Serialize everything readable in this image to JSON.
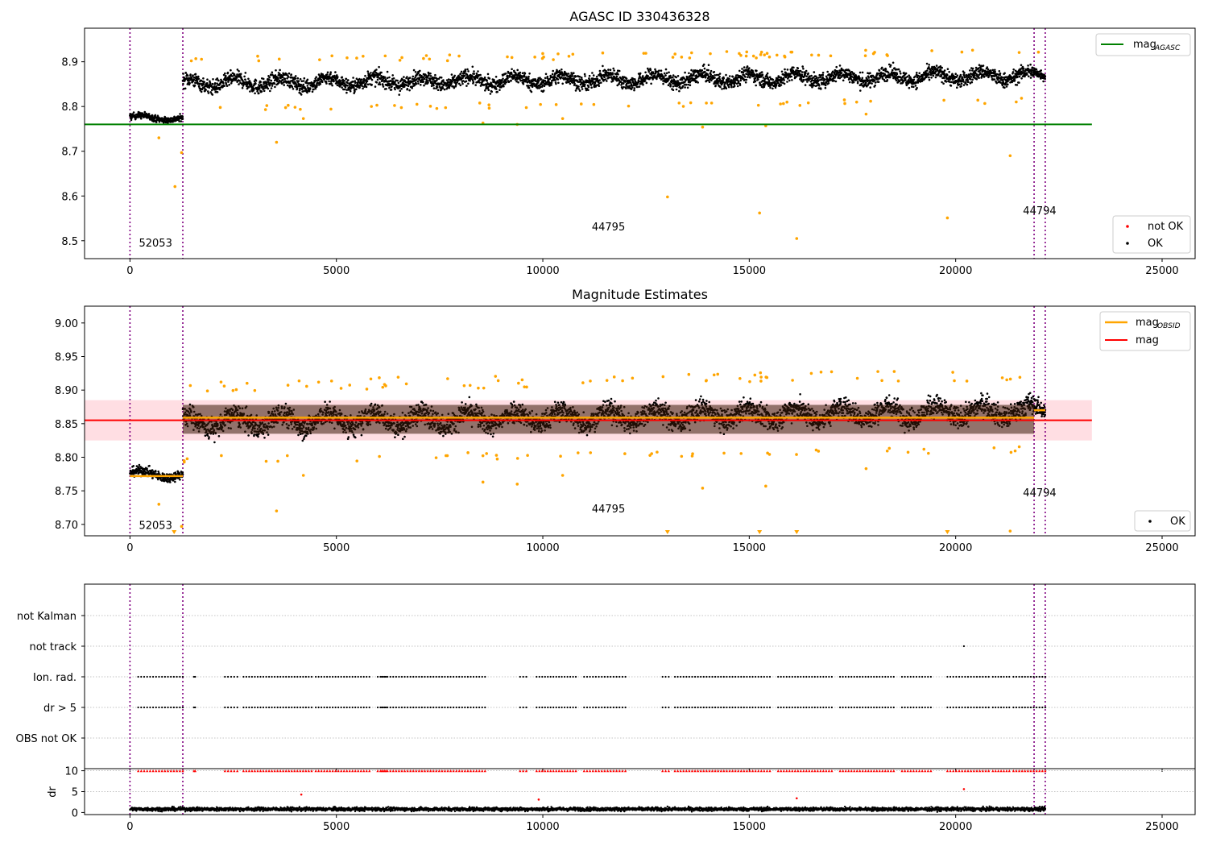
{
  "figure": {
    "window_title": "",
    "obsid_labels": [
      "52053",
      "44795",
      "44794"
    ]
  },
  "chart_data": [
    {
      "type": "scatter",
      "title": "AGASC ID 330436328",
      "xlabel": "",
      "ylabel": "",
      "xlim": [
        -1100,
        25800
      ],
      "ylim": [
        8.46,
        8.975
      ],
      "xticks": [
        0,
        5000,
        10000,
        15000,
        20000,
        25000
      ],
      "yticks": [
        8.5,
        8.6,
        8.7,
        8.8,
        8.9
      ],
      "ytick_labels": [
        "8.5",
        "8.6",
        "8.7",
        "8.8",
        "8.9"
      ],
      "vlines": [
        0,
        1280,
        21900,
        22170
      ],
      "vline_color": "#800080",
      "obsid_segments": [
        {
          "obsid": "52053",
          "x_start": 0,
          "x_end": 1280,
          "label_x": 620,
          "label_y": 8.487
        },
        {
          "obsid": "44795",
          "x_start": 1280,
          "x_end": 21900,
          "label_x": 11590,
          "label_y": 8.523
        },
        {
          "obsid": "44794",
          "x_start": 21900,
          "x_end": 22170,
          "label_x": 22035,
          "label_y": 8.559
        }
      ],
      "ok_clusters": [
        {
          "x_start": 0,
          "x_end": 1280,
          "y_start": 8.777,
          "y_end": 8.772,
          "spread": 0.012
        },
        {
          "x_start": 1280,
          "x_end": 21900,
          "y_start": 8.852,
          "y_end": 8.869,
          "spread": 0.028
        },
        {
          "x_start": 21900,
          "x_end": 22170,
          "y_start": 8.872,
          "y_end": 8.872,
          "spread": 0.02
        }
      ],
      "not_ok_points": [
        {
          "x": 700,
          "y": 8.73
        },
        {
          "x": 1090,
          "y": 8.621
        },
        {
          "x": 1250,
          "y": 8.697
        },
        {
          "x": 3550,
          "y": 8.72
        },
        {
          "x": 4200,
          "y": 8.773
        },
        {
          "x": 8550,
          "y": 8.763
        },
        {
          "x": 9380,
          "y": 8.76
        },
        {
          "x": 10480,
          "y": 8.773
        },
        {
          "x": 13020,
          "y": 8.598
        },
        {
          "x": 13870,
          "y": 8.754
        },
        {
          "x": 15250,
          "y": 8.562
        },
        {
          "x": 15400,
          "y": 8.757
        },
        {
          "x": 16150,
          "y": 8.505
        },
        {
          "x": 17830,
          "y": 8.783
        },
        {
          "x": 19800,
          "y": 8.551
        },
        {
          "x": 21320,
          "y": 8.69
        }
      ],
      "lines": [
        {
          "name": "mag_AGASC",
          "color": "#008000",
          "y": 8.76,
          "x_start": -1100,
          "x_end": 23300
        }
      ],
      "legends": [
        {
          "position": "upper right",
          "entries": [
            {
              "label": "mag",
              "sub": "AGASC",
              "color": "#008000",
              "kind": "line"
            }
          ]
        },
        {
          "position": "lower right",
          "entries": [
            {
              "label": "not OK",
              "color": "#ff0000",
              "kind": "point"
            },
            {
              "label": "OK",
              "color": "#000000",
              "kind": "point"
            }
          ]
        }
      ]
    },
    {
      "type": "scatter",
      "title": "Magnitude Estimates",
      "xlabel": "",
      "ylabel": "",
      "xlim": [
        -1100,
        25800
      ],
      "ylim": [
        8.683,
        9.025
      ],
      "xticks": [
        0,
        5000,
        10000,
        15000,
        20000,
        25000
      ],
      "yticks": [
        8.7,
        8.75,
        8.8,
        8.85,
        8.9,
        8.95,
        9.0
      ],
      "ytick_labels": [
        "8.70",
        "8.75",
        "8.80",
        "8.85",
        "8.90",
        "8.95",
        "9.00"
      ],
      "vlines": [
        0,
        1280,
        21900,
        22170
      ],
      "obsid_segments": [
        {
          "obsid": "52053",
          "x_start": 0,
          "x_end": 1280,
          "label_x": 620,
          "label_y": 8.693
        },
        {
          "obsid": "44795",
          "x_start": 1280,
          "x_end": 21900,
          "label_x": 11590,
          "label_y": 8.718
        },
        {
          "obsid": "44794",
          "x_start": 21900,
          "x_end": 22170,
          "label_x": 22035,
          "label_y": 8.742
        }
      ],
      "mag_obsid": [
        {
          "x_start": 0,
          "x_end": 1280,
          "y": 8.772
        },
        {
          "x_start": 1280,
          "x_end": 21900,
          "y": 8.859
        },
        {
          "x_start": 21900,
          "x_end": 22170,
          "y": 8.87
        }
      ],
      "mag": {
        "y": 8.855,
        "band_low": 8.825,
        "band_high": 8.885,
        "x_start": -1100,
        "x_end": 23300
      },
      "below_range_markers_x": [
        1070,
        13020,
        15250,
        16150,
        19800
      ],
      "legends": [
        {
          "position": "upper right",
          "entries": [
            {
              "label": "mag",
              "sub": "OBSID",
              "color": "#ffa500",
              "kind": "line"
            },
            {
              "label": "mag",
              "color": "#ff0000",
              "kind": "line"
            }
          ]
        },
        {
          "position": "lower right",
          "entries": [
            {
              "label": "OK",
              "color": "#000000",
              "kind": "point"
            }
          ]
        }
      ]
    },
    {
      "type": "scatter",
      "title": "",
      "xlabel": "",
      "ylabel": "",
      "xlim": [
        -1100,
        25800
      ],
      "xticks": [
        0,
        5000,
        10000,
        15000,
        20000,
        25000
      ],
      "categories": [
        "OBS not OK",
        "dr > 5",
        "Ion. rad.",
        "not track",
        "not Kalman"
      ],
      "flags": [
        {
          "category": "dr > 5",
          "segments": [
            [
              200,
              1280
            ],
            [
              1550,
              1580
            ],
            [
              2300,
              2600
            ],
            [
              2750,
              4400
            ],
            [
              4500,
              5800
            ],
            [
              6000,
              6200
            ],
            [
              6100,
              8600
            ],
            [
              9450,
              9600
            ],
            [
              9850,
              10800
            ],
            [
              11000,
              12000
            ],
            [
              12900,
              13050
            ],
            [
              13200,
              15500
            ],
            [
              15700,
              17000
            ],
            [
              17200,
              18500
            ],
            [
              18700,
              19400
            ],
            [
              19800,
              20800
            ],
            [
              20900,
              21300
            ],
            [
              21400,
              22170
            ]
          ]
        },
        {
          "category": "Ion. rad.",
          "segments": [
            [
              200,
              1280
            ],
            [
              1550,
              1580
            ],
            [
              2300,
              2600
            ],
            [
              2750,
              4400
            ],
            [
              4500,
              5800
            ],
            [
              6000,
              6200
            ],
            [
              6100,
              8600
            ],
            [
              9450,
              9600
            ],
            [
              9850,
              10800
            ],
            [
              11000,
              12000
            ],
            [
              12900,
              13050
            ],
            [
              13200,
              15500
            ],
            [
              15700,
              17000
            ],
            [
              17200,
              18500
            ],
            [
              18700,
              19400
            ],
            [
              19800,
              20800
            ],
            [
              20900,
              21300
            ],
            [
              21400,
              22170
            ]
          ]
        },
        {
          "category": "not track",
          "points_x": [
            20200
          ]
        }
      ]
    },
    {
      "type": "scatter",
      "title": "",
      "xlabel": "",
      "ylabel": "dr",
      "xlim": [
        -1100,
        25800
      ],
      "ylim": [
        -0.5,
        10.5
      ],
      "xticks": [
        0,
        5000,
        10000,
        15000,
        20000,
        25000
      ],
      "xtick_labels": [
        "0",
        "5000",
        "10000",
        "15000",
        "20000",
        "25000"
      ],
      "yticks": [
        0,
        5,
        10
      ],
      "ytick_labels": [
        "0",
        "5",
        "10"
      ],
      "dr_base": {
        "x_start": 0,
        "x_end": 22170,
        "center": 0.8,
        "spread": 0.6
      },
      "dr_large_points": [
        {
          "x": 4150,
          "y": 4.3
        },
        {
          "x": 9900,
          "y": 3.1
        },
        {
          "x": 16150,
          "y": 3.4
        },
        {
          "x": 20200,
          "y": 5.6
        }
      ],
      "dr_capped_segments": [
        [
          200,
          1280
        ],
        [
          1550,
          1580
        ],
        [
          2300,
          2600
        ],
        [
          2750,
          4400
        ],
        [
          4500,
          5800
        ],
        [
          6000,
          6200
        ],
        [
          6100,
          8600
        ],
        [
          9450,
          9600
        ],
        [
          9850,
          10800
        ],
        [
          11000,
          12000
        ],
        [
          12900,
          13050
        ],
        [
          13200,
          15500
        ],
        [
          15700,
          17000
        ],
        [
          17200,
          18500
        ],
        [
          18700,
          19400
        ],
        [
          19800,
          20800
        ],
        [
          20900,
          21300
        ],
        [
          21400,
          22170
        ]
      ]
    }
  ]
}
